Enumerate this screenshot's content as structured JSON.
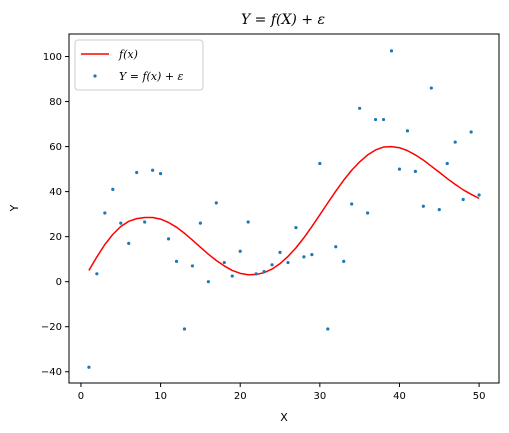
{
  "chart_data": {
    "type": "scatter",
    "title": "Y = f(X) + ε",
    "xlabel": "X",
    "ylabel": "Y",
    "xlim": [
      -1.5,
      52.5
    ],
    "ylim": [
      -45,
      110
    ],
    "xticks": [
      0,
      10,
      20,
      30,
      40,
      50
    ],
    "yticks": [
      -40,
      -20,
      0,
      20,
      40,
      60,
      80,
      100
    ],
    "legend_position": "top-left",
    "grid": false,
    "series": [
      {
        "name": "f(x)",
        "kind": "line",
        "color": "#ff0000",
        "x": [
          1,
          2,
          3,
          4,
          5,
          6,
          7,
          8,
          9,
          10,
          11,
          12,
          13,
          14,
          15,
          16,
          17,
          18,
          19,
          20,
          21,
          22,
          23,
          24,
          25,
          26,
          27,
          28,
          29,
          30,
          31,
          32,
          33,
          34,
          35,
          36,
          37,
          38,
          39,
          40,
          41,
          42,
          43,
          44,
          45,
          46,
          47,
          48,
          49,
          50
        ],
        "y": [
          5,
          11,
          16.5,
          21,
          24.5,
          26.8,
          28,
          28.5,
          28.5,
          27.8,
          26.3,
          24.2,
          21.5,
          18.5,
          15.3,
          12.2,
          9.4,
          7,
          5,
          3.7,
          3.1,
          3.2,
          4,
          5.6,
          8,
          11.2,
          15,
          19.5,
          24.5,
          29.7,
          35,
          40.2,
          45.1,
          49.5,
          53.2,
          56.3,
          58.5,
          59.8,
          60,
          59.5,
          58.2,
          56.3,
          54,
          51.3,
          48.6,
          45.8,
          43.2,
          40.8,
          38.8,
          37
        ]
      },
      {
        "name": "Y = f(x) + ε",
        "kind": "scatter",
        "color": "#1f77b4",
        "x": [
          1,
          2,
          3,
          4,
          5,
          6,
          7,
          8,
          9,
          10,
          11,
          12,
          13,
          14,
          15,
          16,
          17,
          18,
          19,
          20,
          21,
          22,
          23,
          24,
          25,
          26,
          27,
          28,
          29,
          30,
          31,
          32,
          33,
          34,
          35,
          36,
          37,
          38,
          39,
          40,
          41,
          42,
          43,
          44,
          45,
          46,
          47,
          48,
          49,
          50
        ],
        "y": [
          -38,
          3.5,
          30.5,
          41,
          26,
          17,
          48.5,
          26.5,
          49.5,
          48,
          19,
          9,
          -21,
          7,
          26,
          0,
          35,
          8.5,
          2.5,
          13.5,
          26.5,
          3.5,
          4.5,
          7.5,
          13,
          8.5,
          24,
          11,
          12,
          52.5,
          -21,
          15.5,
          9,
          34.5,
          77,
          30.5,
          72,
          72,
          102.5,
          50,
          67,
          49,
          33.5,
          86,
          32,
          52.5,
          62,
          36.5,
          66.5,
          38.5
        ]
      }
    ]
  }
}
